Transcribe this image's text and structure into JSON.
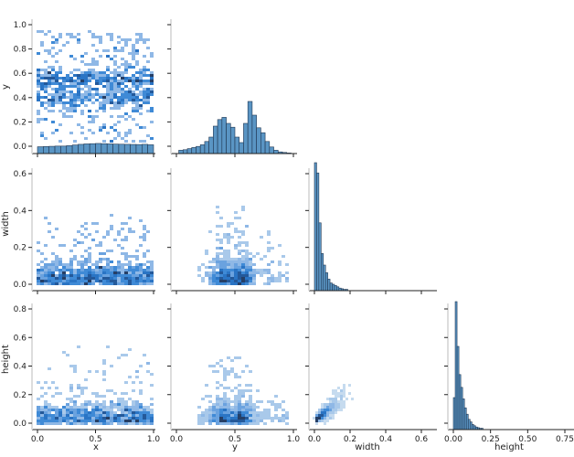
{
  "chart_data": {
    "type": "pairplot",
    "title": "",
    "variables": [
      "x",
      "y",
      "width",
      "height"
    ],
    "layout": "corner (lower triangle), 4x4 grid, histograms on diagonal, 2D histograms off-diagonal",
    "color": "#3b78b4",
    "hist_color": "#5a95c4",
    "axes": {
      "x": {
        "label": "x",
        "range": [
          0.0,
          1.0
        ],
        "ticks": [
          "0.0",
          "0.5",
          "1.0"
        ]
      },
      "y": {
        "label": "y",
        "range": [
          0.0,
          1.0
        ],
        "ticks": [
          "0.0",
          "0.2",
          "0.4",
          "0.6",
          "0.8",
          "1.0"
        ],
        "xticks": [
          "0.0",
          "0.5",
          "1.0"
        ]
      },
      "width": {
        "label": "width",
        "range": [
          0.0,
          0.65
        ],
        "ticks": [
          "0.0",
          "0.2",
          "0.4",
          "0.6"
        ]
      },
      "height": {
        "label": "height",
        "range": [
          0.0,
          0.85
        ],
        "ticks": [
          "0.0",
          "0.2",
          "0.4",
          "0.6",
          "0.8"
        ],
        "xticks": [
          "0.00",
          "0.25",
          "0.50",
          "0.75"
        ]
      }
    },
    "diagonal_histograms": {
      "x": {
        "bins": [
          0.0,
          0.05,
          0.1,
          0.15,
          0.2,
          0.25,
          0.3,
          0.35,
          0.4,
          0.45,
          0.5,
          0.55,
          0.6,
          0.65,
          0.7,
          0.75,
          0.8,
          0.85,
          0.9,
          0.95
        ],
        "relative_counts": [
          0.62,
          0.64,
          0.66,
          0.68,
          0.68,
          0.72,
          0.78,
          0.84,
          0.88,
          0.9,
          0.92,
          0.9,
          0.88,
          0.86,
          0.85,
          0.84,
          0.83,
          0.82,
          0.84,
          0.8
        ]
      },
      "y": {
        "bins_centers": [
          0.025,
          0.075,
          0.125,
          0.175,
          0.225,
          0.275,
          0.325,
          0.35,
          0.375,
          0.4,
          0.425,
          0.45,
          0.475,
          0.5,
          0.525,
          0.55,
          0.575,
          0.6,
          0.625,
          0.65,
          0.7,
          0.75,
          0.8,
          0.85,
          0.9,
          0.95
        ],
        "relative_counts": [
          0.06,
          0.07,
          0.09,
          0.11,
          0.13,
          0.16,
          0.22,
          0.3,
          0.5,
          0.62,
          0.66,
          0.55,
          0.48,
          0.3,
          0.2,
          0.55,
          0.95,
          0.7,
          0.47,
          0.38,
          0.22,
          0.12,
          0.06,
          0.03,
          0.02,
          0.01
        ]
      },
      "width": {
        "bin_width": 0.0125,
        "relative_counts": [
          1.0,
          0.92,
          0.53,
          0.29,
          0.2,
          0.14,
          0.09,
          0.06,
          0.05,
          0.04,
          0.03,
          0.02,
          0.015,
          0.01,
          0.01
        ]
      },
      "height": {
        "bin_width": 0.0125,
        "relative_counts": [
          0.25,
          1.0,
          0.65,
          0.43,
          0.33,
          0.24,
          0.17,
          0.12,
          0.08,
          0.06,
          0.04,
          0.03,
          0.02,
          0.015,
          0.01,
          0.01
        ]
      }
    },
    "scatter_density_notes": {
      "x_vs_y": "dense horizontal bands near y≈0.55 (right half) and y≈0.40 (center-left)",
      "x_vs_width": "concentrated near width≈0.0-0.05, sparse up to 0.6",
      "y_vs_width": "dome shape, dense near y≈0.4 and 0.55 at width≈0.0",
      "x_vs_height": "concentrated near height≈0.0-0.05, sparse up to 0.85",
      "y_vs_height": "triangular fan with two diagonal dense streaks near y≈0.4 and 0.55",
      "width_vs_height": "positive correlation, cone from origin, dense near (0.05,0.05)"
    }
  },
  "labels": {
    "x": "x",
    "y": "y",
    "width": "width",
    "height": "height"
  }
}
